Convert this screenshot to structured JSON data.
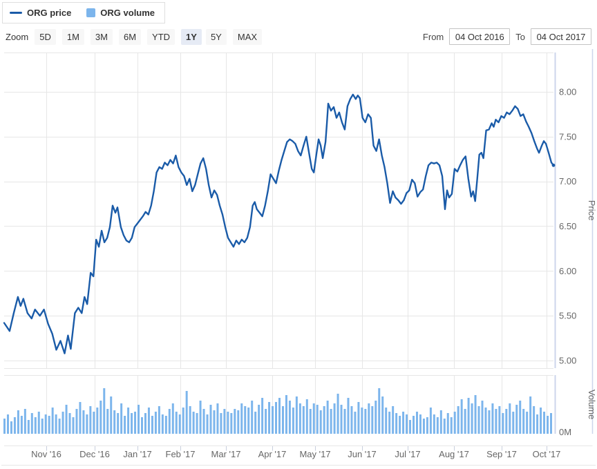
{
  "legend": {
    "price_label": "ORG price",
    "volume_label": "ORG volume"
  },
  "toolbar": {
    "zoom_label": "Zoom",
    "buttons": [
      {
        "label": "5D",
        "selected": false
      },
      {
        "label": "1M",
        "selected": false
      },
      {
        "label": "3M",
        "selected": false
      },
      {
        "label": "6M",
        "selected": false
      },
      {
        "label": "YTD",
        "selected": false
      },
      {
        "label": "1Y",
        "selected": true
      },
      {
        "label": "5Y",
        "selected": false
      },
      {
        "label": "MAX",
        "selected": false
      }
    ],
    "from_label": "From",
    "from_value": "04 Oct 2016",
    "to_label": "To",
    "to_value": "04 Oct 2017"
  },
  "colors": {
    "price_line": "#1a5ba8",
    "volume_bar": "#7cb5ec",
    "grid": "#e6e6e6",
    "axis_line": "#ccd6eb",
    "tick": "#c8cfdd",
    "axis_label": "#666666"
  },
  "chart_data": [
    {
      "type": "line",
      "name": "ORG price",
      "title": "",
      "xlabel": "",
      "ylabel": "Price",
      "x_range": [
        "04 Oct 2016",
        "04 Oct 2017"
      ],
      "x_unit": "px 0-800 mapped linearly over the one-year range",
      "ylim": [
        4.9,
        8.49
      ],
      "y_ticks": [
        {
          "label": "8.00",
          "value": 8.0
        },
        {
          "label": "7.50",
          "value": 7.5
        },
        {
          "label": "7.00",
          "value": 7.0
        },
        {
          "label": "6.50",
          "value": 6.5
        },
        {
          "label": "6.00",
          "value": 6.0
        },
        {
          "label": "5.50",
          "value": 5.5
        },
        {
          "label": "5.00",
          "value": 5.0
        }
      ],
      "months": [
        {
          "label": "Nov '16",
          "pos": 0.0767
        },
        {
          "label": "Dec '16",
          "pos": 0.1648
        },
        {
          "label": "Jan '17",
          "pos": 0.2428
        },
        {
          "label": "Feb '17",
          "pos": 0.3208
        },
        {
          "label": "Mar '17",
          "pos": 0.4038
        },
        {
          "label": "Apr '17",
          "pos": 0.4881
        },
        {
          "label": "May '17",
          "pos": 0.566
        },
        {
          "label": "Jun '17",
          "pos": 0.6516
        },
        {
          "label": "Jul '17",
          "pos": 0.7346
        },
        {
          "label": "Aug '17",
          "pos": 0.8189
        },
        {
          "label": "Sep '17",
          "pos": 0.9057
        },
        {
          "label": "Oct '17",
          "pos": 0.9874
        }
      ],
      "points": [
        [
          0,
          5.42
        ],
        [
          8,
          5.33
        ],
        [
          14,
          5.53
        ],
        [
          20,
          5.71
        ],
        [
          24,
          5.61
        ],
        [
          28,
          5.69
        ],
        [
          34,
          5.53
        ],
        [
          40,
          5.47
        ],
        [
          45,
          5.57
        ],
        [
          52,
          5.5
        ],
        [
          58,
          5.57
        ],
        [
          64,
          5.41
        ],
        [
          70,
          5.3
        ],
        [
          76,
          5.12
        ],
        [
          82,
          5.22
        ],
        [
          88,
          5.08
        ],
        [
          93,
          5.28
        ],
        [
          97,
          5.13
        ],
        [
          103,
          5.53
        ],
        [
          108,
          5.59
        ],
        [
          113,
          5.53
        ],
        [
          117,
          5.71
        ],
        [
          121,
          5.63
        ],
        [
          126,
          5.98
        ],
        [
          130,
          5.94
        ],
        [
          134,
          6.35
        ],
        [
          138,
          6.27
        ],
        [
          142,
          6.45
        ],
        [
          146,
          6.32
        ],
        [
          150,
          6.37
        ],
        [
          154,
          6.49
        ],
        [
          158,
          6.73
        ],
        [
          162,
          6.65
        ],
        [
          165,
          6.71
        ],
        [
          170,
          6.49
        ],
        [
          174,
          6.4
        ],
        [
          178,
          6.34
        ],
        [
          182,
          6.32
        ],
        [
          186,
          6.37
        ],
        [
          190,
          6.49
        ],
        [
          194,
          6.53
        ],
        [
          198,
          6.57
        ],
        [
          202,
          6.61
        ],
        [
          206,
          6.66
        ],
        [
          210,
          6.63
        ],
        [
          214,
          6.73
        ],
        [
          218,
          6.89
        ],
        [
          222,
          7.1
        ],
        [
          226,
          7.16
        ],
        [
          230,
          7.14
        ],
        [
          234,
          7.21
        ],
        [
          238,
          7.18
        ],
        [
          242,
          7.24
        ],
        [
          246,
          7.2
        ],
        [
          250,
          7.29
        ],
        [
          254,
          7.16
        ],
        [
          258,
          7.1
        ],
        [
          262,
          7.06
        ],
        [
          266,
          6.96
        ],
        [
          270,
          7.03
        ],
        [
          274,
          6.89
        ],
        [
          278,
          6.96
        ],
        [
          282,
          7.08
        ],
        [
          286,
          7.2
        ],
        [
          290,
          7.26
        ],
        [
          294,
          7.14
        ],
        [
          298,
          6.96
        ],
        [
          302,
          6.82
        ],
        [
          306,
          6.9
        ],
        [
          310,
          6.85
        ],
        [
          314,
          6.73
        ],
        [
          318,
          6.63
        ],
        [
          322,
          6.49
        ],
        [
          326,
          6.37
        ],
        [
          330,
          6.32
        ],
        [
          334,
          6.27
        ],
        [
          338,
          6.34
        ],
        [
          342,
          6.3
        ],
        [
          346,
          6.35
        ],
        [
          350,
          6.32
        ],
        [
          354,
          6.37
        ],
        [
          358,
          6.49
        ],
        [
          362,
          6.73
        ],
        [
          365,
          6.77
        ],
        [
          368,
          6.69
        ],
        [
          372,
          6.65
        ],
        [
          376,
          6.61
        ],
        [
          380,
          6.73
        ],
        [
          384,
          6.89
        ],
        [
          388,
          7.08
        ],
        [
          392,
          7.03
        ],
        [
          396,
          6.98
        ],
        [
          400,
          7.12
        ],
        [
          404,
          7.24
        ],
        [
          408,
          7.34
        ],
        [
          412,
          7.44
        ],
        [
          416,
          7.47
        ],
        [
          420,
          7.45
        ],
        [
          424,
          7.42
        ],
        [
          428,
          7.34
        ],
        [
          432,
          7.29
        ],
        [
          436,
          7.4
        ],
        [
          440,
          7.5
        ],
        [
          444,
          7.32
        ],
        [
          448,
          7.14
        ],
        [
          451,
          7.1
        ],
        [
          455,
          7.32
        ],
        [
          458,
          7.47
        ],
        [
          461,
          7.4
        ],
        [
          464,
          7.26
        ],
        [
          468,
          7.44
        ],
        [
          470,
          7.65
        ],
        [
          472,
          7.87
        ],
        [
          476,
          7.79
        ],
        [
          480,
          7.83
        ],
        [
          484,
          7.71
        ],
        [
          488,
          7.77
        ],
        [
          492,
          7.66
        ],
        [
          496,
          7.58
        ],
        [
          500,
          7.84
        ],
        [
          504,
          7.92
        ],
        [
          508,
          7.97
        ],
        [
          512,
          7.92
        ],
        [
          515,
          7.96
        ],
        [
          518,
          7.93
        ],
        [
          522,
          7.71
        ],
        [
          526,
          7.66
        ],
        [
          530,
          7.75
        ],
        [
          534,
          7.71
        ],
        [
          538,
          7.4
        ],
        [
          542,
          7.34
        ],
        [
          546,
          7.47
        ],
        [
          550,
          7.29
        ],
        [
          554,
          7.16
        ],
        [
          558,
          6.98
        ],
        [
          562,
          6.76
        ],
        [
          566,
          6.89
        ],
        [
          570,
          6.82
        ],
        [
          574,
          6.79
        ],
        [
          578,
          6.75
        ],
        [
          582,
          6.79
        ],
        [
          586,
          6.87
        ],
        [
          590,
          6.9
        ],
        [
          594,
          7.02
        ],
        [
          598,
          6.98
        ],
        [
          602,
          6.83
        ],
        [
          606,
          6.88
        ],
        [
          610,
          6.91
        ],
        [
          614,
          7.06
        ],
        [
          618,
          7.18
        ],
        [
          622,
          7.21
        ],
        [
          626,
          7.2
        ],
        [
          630,
          7.21
        ],
        [
          634,
          7.18
        ],
        [
          638,
          7.06
        ],
        [
          642,
          6.69
        ],
        [
          645,
          6.9
        ],
        [
          648,
          6.82
        ],
        [
          652,
          6.86
        ],
        [
          656,
          7.14
        ],
        [
          660,
          7.11
        ],
        [
          664,
          7.18
        ],
        [
          668,
          7.24
        ],
        [
          672,
          7.28
        ],
        [
          676,
          7.03
        ],
        [
          680,
          6.83
        ],
        [
          683,
          6.89
        ],
        [
          686,
          6.78
        ],
        [
          689,
          7.03
        ],
        [
          692,
          7.3
        ],
        [
          695,
          7.32
        ],
        [
          698,
          7.26
        ],
        [
          702,
          7.57
        ],
        [
          706,
          7.58
        ],
        [
          710,
          7.65
        ],
        [
          713,
          7.61
        ],
        [
          716,
          7.69
        ],
        [
          720,
          7.66
        ],
        [
          724,
          7.73
        ],
        [
          728,
          7.71
        ],
        [
          732,
          7.77
        ],
        [
          736,
          7.75
        ],
        [
          740,
          7.79
        ],
        [
          744,
          7.84
        ],
        [
          748,
          7.81
        ],
        [
          752,
          7.73
        ],
        [
          756,
          7.75
        ],
        [
          760,
          7.67
        ],
        [
          764,
          7.61
        ],
        [
          768,
          7.54
        ],
        [
          772,
          7.45
        ],
        [
          776,
          7.37
        ],
        [
          779,
          7.32
        ],
        [
          783,
          7.4
        ],
        [
          786,
          7.45
        ],
        [
          789,
          7.42
        ],
        [
          793,
          7.32
        ],
        [
          797,
          7.21
        ],
        [
          800,
          7.18
        ]
      ]
    },
    {
      "type": "bar",
      "name": "ORG volume",
      "ylabel": "Volume",
      "y_ticks": [
        {
          "label": "0M",
          "value": 0
        }
      ],
      "unit": "millions of shares (scale estimated, only 0M labelled)",
      "ylim": [
        0,
        22
      ],
      "values": [
        5.5,
        7,
        4.5,
        6,
        8.5,
        6.5,
        9,
        5,
        7.5,
        6,
        8,
        5.5,
        7,
        6.5,
        9.5,
        7,
        5.5,
        8,
        10.5,
        7.5,
        6,
        9,
        11.5,
        8.5,
        7,
        10,
        8,
        9.5,
        12,
        16.5,
        9,
        13.5,
        8.5,
        7.5,
        11,
        6.5,
        9.5,
        7.5,
        8,
        10.5,
        6,
        7.5,
        9.5,
        6.5,
        8,
        10,
        7,
        6.5,
        9,
        11,
        8,
        7,
        9.5,
        15.5,
        10,
        8,
        7.5,
        12,
        9,
        7,
        10.5,
        8.5,
        11,
        7.5,
        9,
        8,
        7.5,
        9,
        8.5,
        11,
        10,
        9.5,
        12,
        8,
        10.5,
        13,
        9,
        11.5,
        10,
        11.5,
        13,
        10,
        14,
        12,
        9.5,
        13.5,
        11,
        10,
        12.5,
        9,
        11,
        10.5,
        8.5,
        10,
        12,
        9,
        11,
        14.5,
        10.5,
        9,
        13,
        10,
        8,
        11.5,
        9.5,
        9,
        11,
        10,
        12,
        16.5,
        13.5,
        9.5,
        8,
        10,
        7.5,
        6.5,
        8,
        7,
        5,
        6.5,
        8,
        7,
        5.5,
        6,
        9.5,
        7,
        6,
        8.5,
        5.5,
        7.5,
        6,
        8,
        10,
        12.5,
        9,
        13,
        11,
        14,
        10,
        12,
        9.5,
        8.5,
        11,
        9,
        10,
        7.5,
        9,
        11,
        8,
        10.5,
        12,
        9,
        8,
        13.5,
        10,
        7,
        9.5,
        8,
        6.5,
        7.5
      ]
    }
  ]
}
